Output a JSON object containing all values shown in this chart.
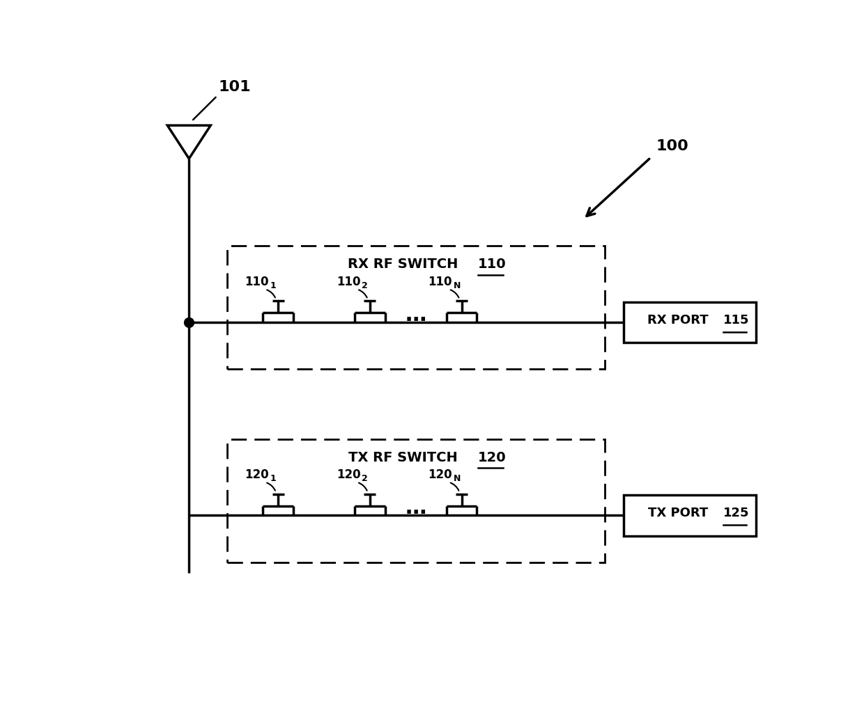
{
  "bg_color": "#ffffff",
  "line_color": "#000000",
  "line_width": 2.5,
  "fig_width": 12.4,
  "fig_height": 10.07,
  "antenna_label": "101",
  "label_100": "100",
  "rx_switch_label": "RX RF SWITCH",
  "rx_switch_num": "110",
  "rx_port_label": "RX PORT",
  "rx_port_num": "115",
  "tx_switch_label": "TX RF SWITCH",
  "tx_switch_num": "120",
  "tx_port_label": "TX PORT",
  "tx_port_num": "125",
  "fet_labels_rx": [
    "110",
    "110",
    "110"
  ],
  "fet_subs_rx": [
    "1",
    "2",
    "N"
  ],
  "fet_labels_tx": [
    "120",
    "120",
    "120"
  ],
  "fet_subs_tx": [
    "1",
    "2",
    "N"
  ]
}
